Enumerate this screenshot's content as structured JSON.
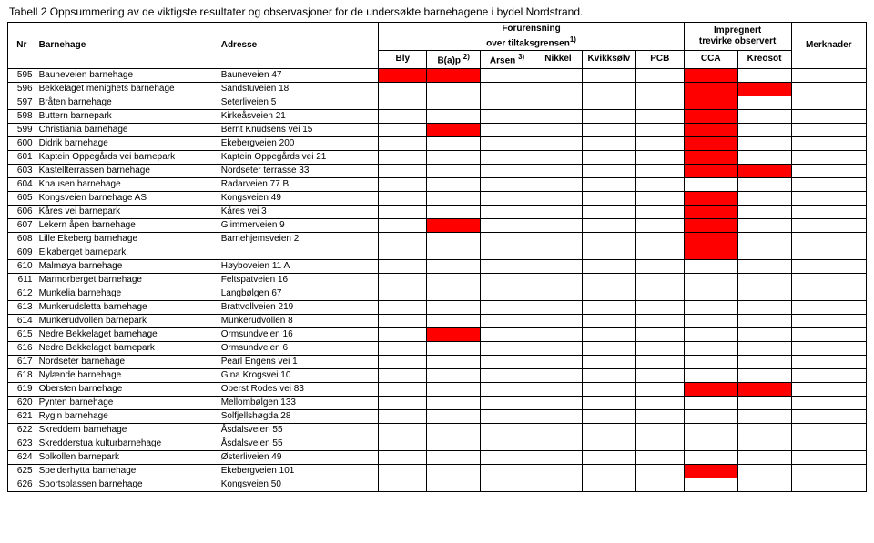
{
  "title": "Tabell 2 Oppsummering av de viktigste resultater og observasjoner for de undersøkte barnehagene i bydel Nordstrand.",
  "header": {
    "nr": "Nr",
    "barnehage": "Barnehage",
    "adresse": "Adresse",
    "forurensning": "Forurensning",
    "forurensning_sub": "over tiltaksgrensen",
    "forurensning_sup": "1)",
    "impregnert": "Impregnert",
    "impregnert_sub": "trevirke observert",
    "merknader": "Merknader",
    "bly": "Bly",
    "bap": "B(a)p",
    "bap_sup": "2)",
    "arsen": "Arsen",
    "arsen_sup": "3)",
    "nikkel": "Nikkel",
    "kvikksolv": "Kvikksølv",
    "pcb": "PCB",
    "cca": "CCA",
    "kreosot": "Kreosot"
  },
  "colors": {
    "fill": "#ff0000",
    "border": "#000000",
    "bg": "#ffffff"
  },
  "marker_columns": [
    "bly",
    "bap",
    "arsen",
    "nikkel",
    "kvikksolv",
    "pcb",
    "cca",
    "kreosot"
  ],
  "rows": [
    {
      "nr": "595",
      "name": "Bauneveien barnehage",
      "addr": "Bauneveien 47",
      "bly": 1,
      "bap": 1,
      "arsen": 0,
      "nikkel": 0,
      "kvikksolv": 0,
      "pcb": 0,
      "cca": 1,
      "kreosot": 0
    },
    {
      "nr": "596",
      "name": "Bekkelaget menighets barnehage",
      "addr": "Sandstuveien 18",
      "bly": 0,
      "bap": 0,
      "arsen": 0,
      "nikkel": 0,
      "kvikksolv": 0,
      "pcb": 0,
      "cca": 1,
      "kreosot": 1
    },
    {
      "nr": "597",
      "name": "Bråten barnehage",
      "addr": "Seterliveien 5",
      "bly": 0,
      "bap": 0,
      "arsen": 0,
      "nikkel": 0,
      "kvikksolv": 0,
      "pcb": 0,
      "cca": 1,
      "kreosot": 0
    },
    {
      "nr": "598",
      "name": "Buttern barnepark",
      "addr": "Kirkeåsveien 21",
      "bly": 0,
      "bap": 0,
      "arsen": 0,
      "nikkel": 0,
      "kvikksolv": 0,
      "pcb": 0,
      "cca": 1,
      "kreosot": 0
    },
    {
      "nr": "599",
      "name": "Christiania barnehage",
      "addr": "Bernt Knudsens vei 15",
      "bly": 0,
      "bap": 1,
      "arsen": 0,
      "nikkel": 0,
      "kvikksolv": 0,
      "pcb": 0,
      "cca": 1,
      "kreosot": 0
    },
    {
      "nr": "600",
      "name": "Didrik barnehage",
      "addr": "Ekebergveien 200",
      "bly": 0,
      "bap": 0,
      "arsen": 0,
      "nikkel": 0,
      "kvikksolv": 0,
      "pcb": 0,
      "cca": 1,
      "kreosot": 0
    },
    {
      "nr": "601",
      "name": "Kaptein Oppegårds vei barnepark",
      "addr": "Kaptein Oppegårds vei 21",
      "bly": 0,
      "bap": 0,
      "arsen": 0,
      "nikkel": 0,
      "kvikksolv": 0,
      "pcb": 0,
      "cca": 1,
      "kreosot": 0
    },
    {
      "nr": "603",
      "name": "Kastellterrassen barnehage",
      "addr": "Nordseter terrasse 33",
      "bly": 0,
      "bap": 0,
      "arsen": 0,
      "nikkel": 0,
      "kvikksolv": 0,
      "pcb": 0,
      "cca": 1,
      "kreosot": 1
    },
    {
      "nr": "604",
      "name": "Knausen barnehage",
      "addr": "Radarveien 77 B",
      "bly": 0,
      "bap": 0,
      "arsen": 0,
      "nikkel": 0,
      "kvikksolv": 0,
      "pcb": 0,
      "cca": 0,
      "kreosot": 0
    },
    {
      "nr": "605",
      "name": "Kongsveien barnehage AS",
      "addr": "Kongsveien 49",
      "bly": 0,
      "bap": 0,
      "arsen": 0,
      "nikkel": 0,
      "kvikksolv": 0,
      "pcb": 0,
      "cca": 1,
      "kreosot": 0
    },
    {
      "nr": "606",
      "name": "Kåres vei barnepark",
      "addr": "Kåres vei 3",
      "bly": 0,
      "bap": 0,
      "arsen": 0,
      "nikkel": 0,
      "kvikksolv": 0,
      "pcb": 0,
      "cca": 1,
      "kreosot": 0
    },
    {
      "nr": "607",
      "name": "Lekern åpen barnehage",
      "addr": "Glimmerveien 9",
      "bly": 0,
      "bap": 1,
      "arsen": 0,
      "nikkel": 0,
      "kvikksolv": 0,
      "pcb": 0,
      "cca": 1,
      "kreosot": 0
    },
    {
      "nr": "608",
      "name": "Lille Ekeberg barnehage",
      "addr": "Barnehjemsveien 2",
      "bly": 0,
      "bap": 0,
      "arsen": 0,
      "nikkel": 0,
      "kvikksolv": 0,
      "pcb": 0,
      "cca": 1,
      "kreosot": 0
    },
    {
      "nr": "609",
      "name": "Eikaberget barnepark.",
      "addr": "",
      "bly": 0,
      "bap": 0,
      "arsen": 0,
      "nikkel": 0,
      "kvikksolv": 0,
      "pcb": 0,
      "cca": 1,
      "kreosot": 0
    },
    {
      "nr": "610",
      "name": "Malmøya barnehage",
      "addr": "Høyboveien 11 A",
      "bly": 0,
      "bap": 0,
      "arsen": 0,
      "nikkel": 0,
      "kvikksolv": 0,
      "pcb": 0,
      "cca": 0,
      "kreosot": 0
    },
    {
      "nr": "611",
      "name": "Marmorberget barnehage",
      "addr": "Feltspatveien 16",
      "bly": 0,
      "bap": 0,
      "arsen": 0,
      "nikkel": 0,
      "kvikksolv": 0,
      "pcb": 0,
      "cca": 0,
      "kreosot": 0
    },
    {
      "nr": "612",
      "name": "Munkelia barnehage",
      "addr": "Langbølgen 67",
      "bly": 0,
      "bap": 0,
      "arsen": 0,
      "nikkel": 0,
      "kvikksolv": 0,
      "pcb": 0,
      "cca": 0,
      "kreosot": 0
    },
    {
      "nr": "613",
      "name": "Munkerudsletta barnehage",
      "addr": "Brattvollveien 219",
      "bly": 0,
      "bap": 0,
      "arsen": 0,
      "nikkel": 0,
      "kvikksolv": 0,
      "pcb": 0,
      "cca": 0,
      "kreosot": 0
    },
    {
      "nr": "614",
      "name": "Munkerudvollen barnepark",
      "addr": "Munkerudvollen 8",
      "bly": 0,
      "bap": 0,
      "arsen": 0,
      "nikkel": 0,
      "kvikksolv": 0,
      "pcb": 0,
      "cca": 0,
      "kreosot": 0
    },
    {
      "nr": "615",
      "name": "Nedre Bekkelaget barnehage",
      "addr": "Ormsundveien 16",
      "bly": 0,
      "bap": 1,
      "arsen": 0,
      "nikkel": 0,
      "kvikksolv": 0,
      "pcb": 0,
      "cca": 0,
      "kreosot": 0
    },
    {
      "nr": "616",
      "name": "Nedre Bekkelaget barnepark",
      "addr": "Ormsundveien 6",
      "bly": 0,
      "bap": 0,
      "arsen": 0,
      "nikkel": 0,
      "kvikksolv": 0,
      "pcb": 0,
      "cca": 0,
      "kreosot": 0
    },
    {
      "nr": "617",
      "name": "Nordseter barnehage",
      "addr": "Pearl Engens vei 1",
      "bly": 0,
      "bap": 0,
      "arsen": 0,
      "nikkel": 0,
      "kvikksolv": 0,
      "pcb": 0,
      "cca": 0,
      "kreosot": 0
    },
    {
      "nr": "618",
      "name": "Nylænde barnehage",
      "addr": "Gina Krogsvei 10",
      "bly": 0,
      "bap": 0,
      "arsen": 0,
      "nikkel": 0,
      "kvikksolv": 0,
      "pcb": 0,
      "cca": 0,
      "kreosot": 0
    },
    {
      "nr": "619",
      "name": "Obersten barnehage",
      "addr": "Oberst Rodes vei 83",
      "bly": 0,
      "bap": 0,
      "arsen": 0,
      "nikkel": 0,
      "kvikksolv": 0,
      "pcb": 0,
      "cca": 1,
      "kreosot": 1
    },
    {
      "nr": "620",
      "name": "Pynten barnehage",
      "addr": "Mellombølgen 133",
      "bly": 0,
      "bap": 0,
      "arsen": 0,
      "nikkel": 0,
      "kvikksolv": 0,
      "pcb": 0,
      "cca": 0,
      "kreosot": 0
    },
    {
      "nr": "621",
      "name": "Rygin barnehage",
      "addr": "Solfjellshøgda 28",
      "bly": 0,
      "bap": 0,
      "arsen": 0,
      "nikkel": 0,
      "kvikksolv": 0,
      "pcb": 0,
      "cca": 0,
      "kreosot": 0
    },
    {
      "nr": "622",
      "name": "Skreddern barnehage",
      "addr": "Åsdalsveien 55",
      "bly": 0,
      "bap": 0,
      "arsen": 0,
      "nikkel": 0,
      "kvikksolv": 0,
      "pcb": 0,
      "cca": 0,
      "kreosot": 0
    },
    {
      "nr": "623",
      "name": "Skredderstua kulturbarnehage",
      "addr": "Åsdalsveien 55",
      "bly": 0,
      "bap": 0,
      "arsen": 0,
      "nikkel": 0,
      "kvikksolv": 0,
      "pcb": 0,
      "cca": 0,
      "kreosot": 0
    },
    {
      "nr": "624",
      "name": "Solkollen barnepark",
      "addr": "Østerliveien 49",
      "bly": 0,
      "bap": 0,
      "arsen": 0,
      "nikkel": 0,
      "kvikksolv": 0,
      "pcb": 0,
      "cca": 0,
      "kreosot": 0
    },
    {
      "nr": "625",
      "name": "Speiderhytta barnehage",
      "addr": "Ekebergveien 101",
      "bly": 0,
      "bap": 0,
      "arsen": 0,
      "nikkel": 0,
      "kvikksolv": 0,
      "pcb": 0,
      "cca": 1,
      "kreosot": 0
    },
    {
      "nr": "626",
      "name": "Sportsplassen barnehage",
      "addr": "Kongsveien 50",
      "bly": 0,
      "bap": 0,
      "arsen": 0,
      "nikkel": 0,
      "kvikksolv": 0,
      "pcb": 0,
      "cca": 0,
      "kreosot": 0
    }
  ]
}
